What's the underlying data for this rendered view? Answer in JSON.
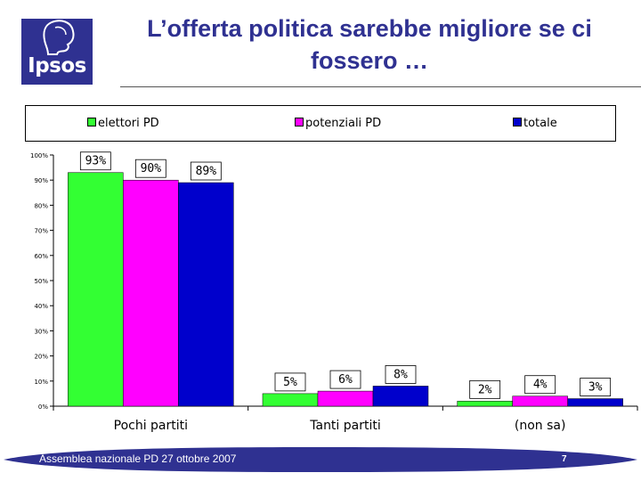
{
  "logo_text": "Ipsos",
  "title": "L’offerta politica sarebbe migliore se ci fossero …",
  "footer": {
    "text": "Assemblea nazionale PD 27 ottobre 2007",
    "page": "7"
  },
  "colors": {
    "title": "#2f3191",
    "footer": "#2f3191"
  },
  "chart_data": {
    "type": "bar",
    "categories": [
      "Pochi partiti",
      "Tanti partiti",
      "(non sa)"
    ],
    "series": [
      {
        "name": "elettori PD",
        "color": "#33ff33",
        "values": [
          93,
          5,
          2
        ],
        "labels": [
          "93%",
          "5%",
          "2%"
        ]
      },
      {
        "name": "potenziali PD",
        "color": "#ff00ff",
        "values": [
          90,
          6,
          4
        ],
        "labels": [
          "90%",
          "6%",
          "4%"
        ]
      },
      {
        "name": "totale",
        "color": "#0000cc",
        "values": [
          89,
          8,
          3
        ],
        "labels": [
          "89%",
          "8%",
          "3%"
        ]
      }
    ],
    "ylim": [
      0,
      100
    ],
    "yticks": [
      "0%",
      "10%",
      "20%",
      "30%",
      "40%",
      "50%",
      "60%",
      "70%",
      "80%",
      "90%",
      "100%"
    ],
    "legend": "top",
    "grid": false
  }
}
